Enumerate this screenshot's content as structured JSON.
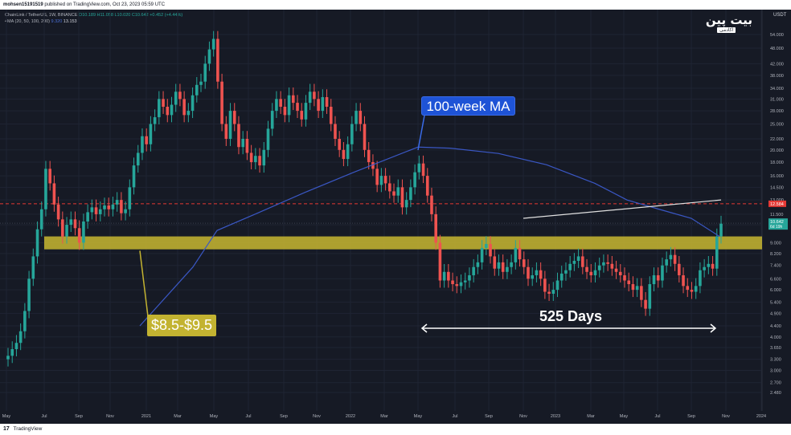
{
  "header": {
    "publisher": "mohsen15191519",
    "published_on": "published on TradingView.com, Oct 23, 2023 05:59 UTC"
  },
  "legend": {
    "symbol": "ChainLink / TetherUS, 1W, BINANCE",
    "ohlc": "O10.189 H11.058 L10.020 C10.642 +0.452 (+4.44%)",
    "ma_label": "4MA (20, 50, 100, 200)",
    "ma_value_1": "9.320",
    "ma_value_2": "13.153"
  },
  "logo": {
    "main": "بیت پین",
    "sub": "آکادمی"
  },
  "footer": {
    "brand": "TradingView"
  },
  "annotations": {
    "ma_callout": "100-week MA",
    "support_zone": "$8.5-$9.5",
    "duration": "525 Days"
  },
  "colors": {
    "background": "#161a25",
    "up_candle": "#26a69a",
    "down_candle": "#ef5350",
    "ma_line": "#3a57c4",
    "support_band": "#c3b331",
    "resistance_line": "#e53935"
  },
  "chart_data": {
    "type": "candlestick",
    "scale": "log",
    "currency": "USDT",
    "price_axis_ticks": [
      "54.000",
      "48.000",
      "42.000",
      "38.000",
      "34.000",
      "31.000",
      "28.000",
      "25.000",
      "22.000",
      "20.000",
      "18.000",
      "16.000",
      "14.500",
      "13.000",
      "11.500",
      "10.500",
      "9.000",
      "8.200",
      "7.400",
      "6.600",
      "6.000",
      "5.400",
      "4.900",
      "4.400",
      "4.000",
      "3.650",
      "3.300",
      "3.000",
      "2.700",
      "2.480"
    ],
    "time_axis_ticks": [
      "May",
      "Jul",
      "Sep",
      "Nov",
      "2021",
      "Mar",
      "May",
      "Jul",
      "Sep",
      "Nov",
      "2022",
      "Mar",
      "May",
      "Jul",
      "Sep",
      "Nov",
      "2023",
      "Mar",
      "May",
      "Jul",
      "Sep",
      "Nov",
      "2024"
    ],
    "current_price": "10.642",
    "countdown": "6d 19h",
    "resistance_price": "12.584",
    "support_zone_range": [
      8.5,
      9.5
    ],
    "ohlc_close_approx": [
      3.4,
      3.6,
      3.8,
      4.2,
      5.0,
      6.6,
      8.0,
      10.1,
      12.0,
      17.0,
      15.0,
      12.5,
      11.0,
      9.5,
      10.5,
      11.0,
      10.2,
      9.0,
      10.8,
      11.7,
      12.2,
      11.5,
      12.0,
      12.4,
      12.0,
      12.5,
      13.0,
      11.6,
      12.0,
      14.5,
      17.5,
      19.5,
      22.5,
      21.0,
      25.0,
      26.5,
      31.0,
      29.0,
      27.0,
      29.5,
      33.0,
      31.0,
      27.0,
      28.0,
      32.0,
      35.0,
      36.0,
      42.0,
      47.5,
      52.0,
      36.0,
      25.0,
      22.0,
      28.0,
      25.0,
      20.5,
      22.0,
      19.5,
      18.0,
      19.0,
      17.5,
      20.0,
      24.0,
      28.0,
      31.0,
      29.0,
      27.0,
      32.0,
      30.0,
      28.0,
      26.0,
      30.0,
      33.0,
      31.0,
      28.0,
      31.5,
      29.0,
      25.0,
      22.0,
      20.0,
      18.5,
      21.0,
      25.0,
      28.0,
      25.0,
      20.0,
      18.0,
      17.0,
      14.8,
      16.0,
      15.0,
      14.0,
      13.5,
      14.5,
      12.2,
      13.0,
      14.5,
      16.5,
      17.8,
      16.0,
      13.5,
      11.5,
      9.0,
      6.5,
      7.0,
      6.5,
      6.3,
      6.2,
      6.4,
      6.5,
      6.8,
      7.3,
      7.6,
      8.6,
      8.9,
      8.0,
      7.2,
      7.6,
      7.0,
      7.3,
      7.6,
      8.6,
      7.8,
      7.3,
      6.6,
      6.8,
      7.1,
      6.6,
      5.9,
      5.8,
      6.0,
      6.5,
      6.9,
      7.1,
      7.5,
      7.7,
      8.0,
      7.3,
      7.0,
      6.8,
      7.1,
      7.4,
      7.6,
      7.5,
      7.2,
      7.0,
      6.8,
      6.5,
      6.3,
      6.0,
      6.2,
      5.5,
      5.1,
      6.3,
      6.8,
      6.5,
      7.4,
      7.8,
      8.1,
      7.5,
      6.8,
      6.2,
      6.0,
      5.9,
      6.2,
      7.1,
      7.3,
      7.5,
      7.2,
      9.5,
      10.6
    ],
    "ma_100_week_path": [
      [
        174,
        4.4
      ],
      [
        240,
        7.3
      ],
      [
        270,
        10.0
      ],
      [
        320,
        11.6
      ],
      [
        380,
        13.9
      ],
      [
        440,
        16.5
      ],
      [
        520,
        20.5
      ],
      [
        560,
        20.3
      ],
      [
        620,
        19.4
      ],
      [
        680,
        17.6
      ],
      [
        740,
        15.0
      ],
      [
        780,
        13.0
      ],
      [
        820,
        12.0
      ],
      [
        860,
        11.1
      ],
      [
        895,
        9.5
      ]
    ]
  }
}
